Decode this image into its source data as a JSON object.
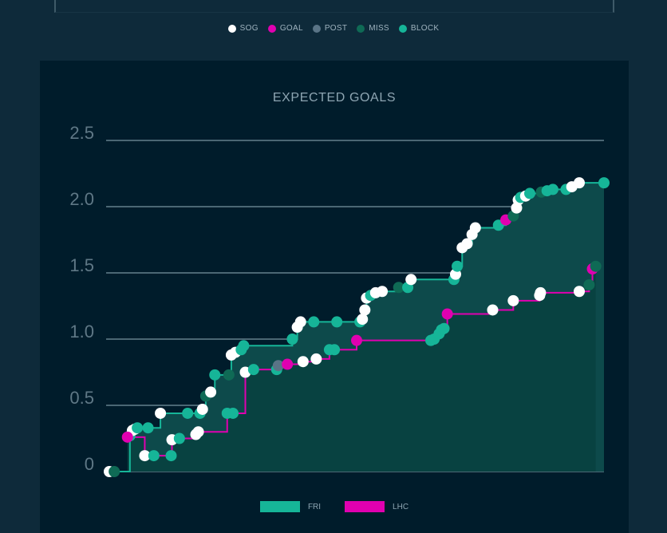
{
  "shot_legend": [
    {
      "label": "SOG",
      "color": "#ffffff"
    },
    {
      "label": "GOAL",
      "color": "#e000b0"
    },
    {
      "label": "POST",
      "color": "#5a7486"
    },
    {
      "label": "MISS",
      "color": "#0f6a55"
    },
    {
      "label": "BLOCK",
      "color": "#16b598"
    }
  ],
  "team_legend": [
    {
      "label": "FRI",
      "color": "#16b598"
    },
    {
      "label": "LHC",
      "color": "#e000b0"
    }
  ],
  "chart_data": {
    "type": "area",
    "title": "EXPECTED GOALS",
    "xlabel": "",
    "ylabel": "",
    "ylim": [
      0,
      2.5
    ],
    "xlim": [
      0,
      60
    ],
    "yticks": [
      "0",
      "0.5",
      "1.0",
      "1.5",
      "2.0",
      "2.5"
    ],
    "grid": true,
    "legend": "bottom-center",
    "series": [
      {
        "name": "FRI",
        "color": "#16b598",
        "events": [
          [
            0,
            0.0,
            "SOG"
          ],
          [
            0.6,
            0.0,
            "MISS"
          ],
          [
            2.5,
            0.27,
            "BLOCK"
          ],
          [
            2.8,
            0.31,
            "SOG"
          ],
          [
            3.1,
            0.32,
            "SOG"
          ],
          [
            3.4,
            0.33,
            "BLOCK"
          ],
          [
            4.7,
            0.33,
            "BLOCK"
          ],
          [
            6.2,
            0.44,
            "SOG"
          ],
          [
            9.5,
            0.44,
            "BLOCK"
          ],
          [
            11.0,
            0.44,
            "BLOCK"
          ],
          [
            11.3,
            0.47,
            "SOG"
          ],
          [
            11.7,
            0.57,
            "MISS"
          ],
          [
            12.3,
            0.6,
            "SOG"
          ],
          [
            12.8,
            0.73,
            "BLOCK"
          ],
          [
            14.5,
            0.73,
            "MISS"
          ],
          [
            14.8,
            0.88,
            "SOG"
          ],
          [
            15.3,
            0.9,
            "SOG"
          ],
          [
            16.0,
            0.92,
            "BLOCK"
          ],
          [
            16.3,
            0.95,
            "BLOCK"
          ],
          [
            22.2,
            1.0,
            "BLOCK"
          ],
          [
            22.8,
            1.09,
            "SOG"
          ],
          [
            23.2,
            1.13,
            "SOG"
          ],
          [
            24.8,
            1.13,
            "BLOCK"
          ],
          [
            27.6,
            1.13,
            "BLOCK"
          ],
          [
            30.4,
            1.13,
            "BLOCK"
          ],
          [
            30.7,
            1.15,
            "SOG"
          ],
          [
            31.0,
            1.22,
            "SOG"
          ],
          [
            31.2,
            1.31,
            "SOG"
          ],
          [
            31.7,
            1.33,
            "BLOCK"
          ],
          [
            32.3,
            1.35,
            "SOG"
          ],
          [
            33.1,
            1.36,
            "SOG"
          ],
          [
            35.1,
            1.39,
            "MISS"
          ],
          [
            36.2,
            1.39,
            "BLOCK"
          ],
          [
            36.6,
            1.45,
            "SOG"
          ],
          [
            41.8,
            1.45,
            "BLOCK"
          ],
          [
            42.0,
            1.49,
            "SOG"
          ],
          [
            42.2,
            1.55,
            "BLOCK"
          ],
          [
            42.8,
            1.69,
            "SOG"
          ],
          [
            43.4,
            1.72,
            "SOG"
          ],
          [
            44.0,
            1.79,
            "SOG"
          ],
          [
            44.4,
            1.84,
            "SOG"
          ],
          [
            47.2,
            1.86,
            "BLOCK"
          ],
          [
            48.1,
            1.9,
            "GOAL"
          ],
          [
            49.0,
            1.93,
            "MISS"
          ],
          [
            49.4,
            1.99,
            "SOG"
          ],
          [
            49.6,
            2.05,
            "SOG"
          ],
          [
            49.9,
            2.07,
            "BLOCK"
          ],
          [
            50.5,
            2.08,
            "SOG"
          ],
          [
            51.0,
            2.1,
            "BLOCK"
          ],
          [
            52.4,
            2.11,
            "MISS"
          ],
          [
            53.1,
            2.12,
            "BLOCK"
          ],
          [
            53.8,
            2.13,
            "BLOCK"
          ],
          [
            55.4,
            2.13,
            "BLOCK"
          ],
          [
            56.1,
            2.15,
            "SOG"
          ],
          [
            57.0,
            2.18,
            "SOG"
          ],
          [
            60.0,
            2.18,
            "BLOCK"
          ]
        ]
      },
      {
        "name": "LHC",
        "color": "#e000b0",
        "events": [
          [
            2.2,
            0.26,
            "GOAL"
          ],
          [
            4.3,
            0.12,
            "SOG"
          ],
          [
            5.4,
            0.12,
            "BLOCK"
          ],
          [
            7.5,
            0.12,
            "BLOCK"
          ],
          [
            7.6,
            0.24,
            "SOG"
          ],
          [
            8.5,
            0.25,
            "BLOCK"
          ],
          [
            10.5,
            0.28,
            "SOG"
          ],
          [
            10.8,
            0.3,
            "SOG"
          ],
          [
            14.3,
            0.44,
            "BLOCK"
          ],
          [
            15.0,
            0.44,
            "BLOCK"
          ],
          [
            16.5,
            0.75,
            "SOG"
          ],
          [
            17.5,
            0.77,
            "BLOCK"
          ],
          [
            20.3,
            0.77,
            "BLOCK"
          ],
          [
            20.5,
            0.8,
            "POST"
          ],
          [
            21.6,
            0.81,
            "GOAL"
          ],
          [
            23.5,
            0.83,
            "SOG"
          ],
          [
            25.1,
            0.85,
            "SOG"
          ],
          [
            26.7,
            0.92,
            "BLOCK"
          ],
          [
            27.3,
            0.92,
            "BLOCK"
          ],
          [
            30.0,
            0.99,
            "GOAL"
          ],
          [
            39.0,
            0.99,
            "BLOCK"
          ],
          [
            39.4,
            1.0,
            "BLOCK"
          ],
          [
            40.0,
            1.04,
            "BLOCK"
          ],
          [
            40.3,
            1.07,
            "BLOCK"
          ],
          [
            40.6,
            1.08,
            "BLOCK"
          ],
          [
            41.0,
            1.19,
            "GOAL"
          ],
          [
            46.5,
            1.22,
            "SOG"
          ],
          [
            49.0,
            1.29,
            "SOG"
          ],
          [
            52.2,
            1.33,
            "SOG"
          ],
          [
            52.3,
            1.35,
            "SOG"
          ],
          [
            57.0,
            1.36,
            "SOG"
          ],
          [
            58.2,
            1.41,
            "MISS"
          ],
          [
            58.6,
            1.53,
            "GOAL"
          ],
          [
            59.0,
            1.55,
            "MISS"
          ]
        ]
      }
    ]
  }
}
